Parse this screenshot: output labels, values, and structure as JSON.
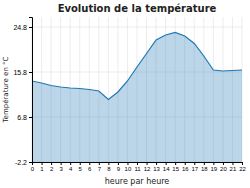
{
  "chart_data": {
    "type": "area",
    "title": "Evolution de la température",
    "xlabel": "heure par heure",
    "ylabel": "Température en °C",
    "x": [
      0,
      1,
      2,
      3,
      4,
      5,
      6,
      7,
      8,
      9,
      10,
      11,
      12,
      13,
      14,
      15,
      16,
      17,
      18,
      19,
      20,
      21,
      22
    ],
    "values": [
      14.0,
      13.6,
      13.1,
      12.8,
      12.6,
      12.5,
      12.3,
      12.0,
      10.3,
      11.8,
      14.0,
      16.8,
      19.5,
      22.2,
      23.2,
      23.7,
      23.0,
      21.5,
      19.0,
      16.2,
      16.0,
      16.1,
      16.2
    ],
    "xlim": [
      0,
      22
    ],
    "xticks": [
      0,
      1,
      2,
      3,
      4,
      5,
      6,
      7,
      8,
      9,
      10,
      11,
      12,
      13,
      14,
      15,
      16,
      17,
      18,
      19,
      20,
      21,
      22
    ],
    "ylim": [
      -2.2,
      26.8
    ],
    "yticks": [
      -2.2,
      6.8,
      15.8,
      24.8
    ],
    "grid": true
  }
}
